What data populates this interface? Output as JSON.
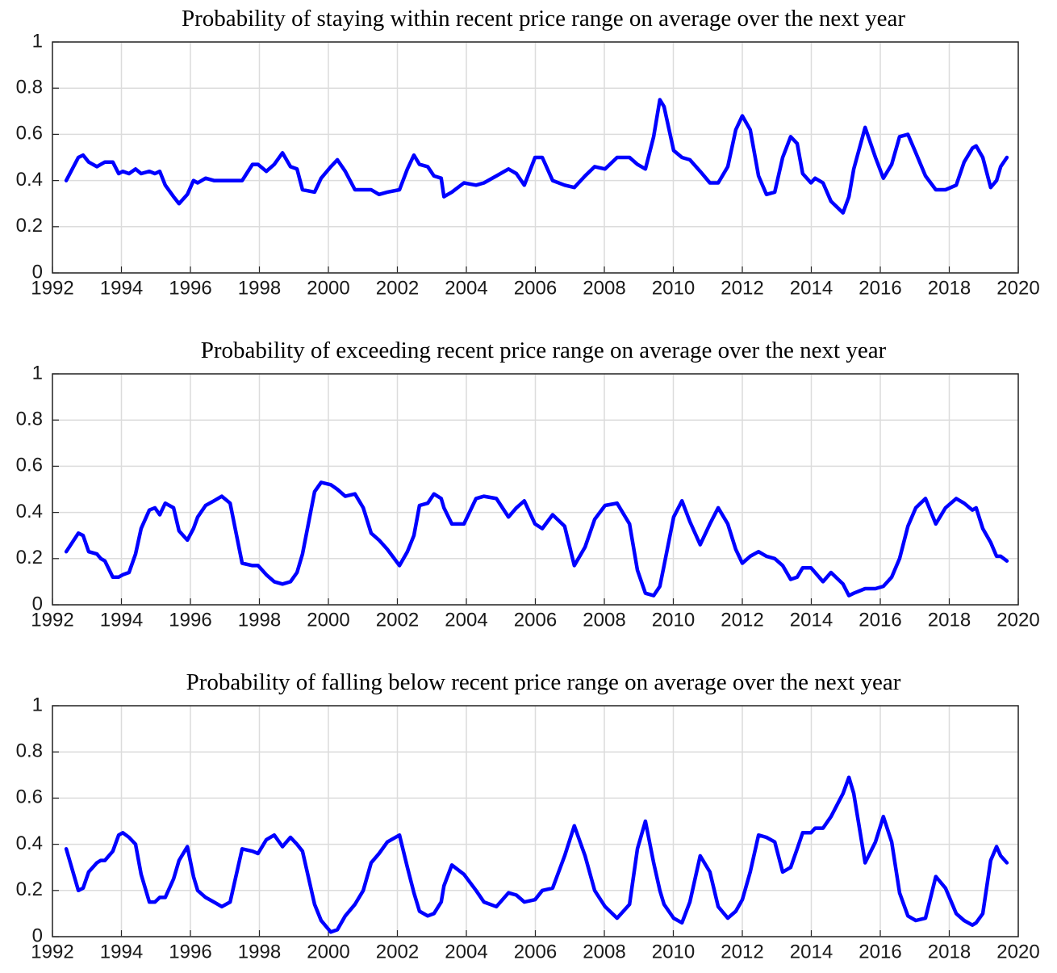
{
  "chart_data": [
    {
      "type": "line",
      "title": "Probability of staying within recent price range on average over the next year",
      "x": [
        1992.4,
        1992.75,
        1992.89,
        1993.05,
        1993.29,
        1993.4,
        1993.52,
        1993.75,
        1993.92,
        1994.04,
        1994.22,
        1994.41,
        1994.57,
        1994.81,
        1994.97,
        1995.11,
        1995.27,
        1995.51,
        1995.67,
        1995.91,
        1996.09,
        1996.21,
        1996.44,
        1996.68,
        1996.91,
        1997.15,
        1997.5,
        1997.8,
        1997.96,
        1998.2,
        1998.43,
        1998.67,
        1998.9,
        1999.09,
        1999.25,
        1999.6,
        1999.79,
        2000.07,
        2000.26,
        2000.49,
        2000.77,
        2001.01,
        2001.24,
        2001.47,
        2001.71,
        2002.06,
        2002.29,
        2002.48,
        2002.64,
        2002.88,
        2003.06,
        2003.27,
        2003.35,
        2003.58,
        2003.93,
        2004.28,
        2004.51,
        2004.87,
        2005.22,
        2005.45,
        2005.68,
        2005.99,
        2006.2,
        2006.5,
        2006.85,
        2007.13,
        2007.44,
        2007.72,
        2008.02,
        2008.37,
        2008.73,
        2008.96,
        2009.19,
        2009.43,
        2009.61,
        2009.73,
        2010.01,
        2010.25,
        2010.48,
        2010.78,
        2011.06,
        2011.3,
        2011.58,
        2011.81,
        2012.0,
        2012.23,
        2012.47,
        2012.7,
        2012.94,
        2013.17,
        2013.4,
        2013.59,
        2013.75,
        2013.99,
        2014.11,
        2014.34,
        2014.57,
        2014.92,
        2015.09,
        2015.23,
        2015.56,
        2015.86,
        2016.09,
        2016.33,
        2016.56,
        2016.8,
        2017.03,
        2017.31,
        2017.61,
        2017.89,
        2018.2,
        2018.43,
        2018.67,
        2018.78,
        2018.97,
        2019.2,
        2019.37,
        2019.49,
        2019.67
      ],
      "values": [
        0.4,
        0.5,
        0.51,
        0.48,
        0.46,
        0.47,
        0.48,
        0.48,
        0.43,
        0.44,
        0.43,
        0.45,
        0.43,
        0.44,
        0.43,
        0.44,
        0.38,
        0.33,
        0.3,
        0.34,
        0.4,
        0.39,
        0.41,
        0.4,
        0.4,
        0.4,
        0.4,
        0.47,
        0.47,
        0.44,
        0.47,
        0.52,
        0.46,
        0.45,
        0.36,
        0.35,
        0.41,
        0.46,
        0.49,
        0.44,
        0.36,
        0.36,
        0.36,
        0.34,
        0.35,
        0.36,
        0.45,
        0.51,
        0.47,
        0.46,
        0.42,
        0.41,
        0.33,
        0.35,
        0.39,
        0.38,
        0.39,
        0.42,
        0.45,
        0.43,
        0.38,
        0.5,
        0.5,
        0.4,
        0.38,
        0.37,
        0.42,
        0.46,
        0.45,
        0.5,
        0.5,
        0.47,
        0.45,
        0.59,
        0.75,
        0.72,
        0.53,
        0.5,
        0.49,
        0.44,
        0.39,
        0.39,
        0.46,
        0.62,
        0.68,
        0.62,
        0.42,
        0.34,
        0.35,
        0.5,
        0.59,
        0.56,
        0.43,
        0.39,
        0.41,
        0.39,
        0.31,
        0.26,
        0.33,
        0.45,
        0.63,
        0.5,
        0.41,
        0.47,
        0.59,
        0.6,
        0.52,
        0.42,
        0.36,
        0.36,
        0.38,
        0.48,
        0.54,
        0.55,
        0.5,
        0.37,
        0.4,
        0.46,
        0.5
      ],
      "color": "#0000ff",
      "xlim": [
        1992,
        2020
      ],
      "xticks": [
        1992,
        1994,
        1996,
        1998,
        2000,
        2002,
        2004,
        2006,
        2008,
        2010,
        2012,
        2014,
        2016,
        2018,
        2020
      ],
      "ylim": [
        0,
        1
      ],
      "yticks": [
        0,
        0.2,
        0.4,
        0.6,
        0.8,
        1
      ],
      "grid": true
    },
    {
      "type": "line",
      "title": "Probability of exceeding recent price range on average over the next year",
      "x": [
        1992.4,
        1992.75,
        1992.89,
        1993.05,
        1993.29,
        1993.4,
        1993.52,
        1993.75,
        1993.92,
        1994.04,
        1994.22,
        1994.41,
        1994.57,
        1994.81,
        1994.97,
        1995.11,
        1995.27,
        1995.51,
        1995.67,
        1995.91,
        1996.09,
        1996.21,
        1996.44,
        1996.68,
        1996.91,
        1997.15,
        1997.5,
        1997.8,
        1997.96,
        1998.2,
        1998.43,
        1998.67,
        1998.9,
        1999.09,
        1999.25,
        1999.6,
        1999.79,
        2000.07,
        2000.26,
        2000.49,
        2000.77,
        2001.01,
        2001.24,
        2001.47,
        2001.71,
        2002.06,
        2002.29,
        2002.48,
        2002.64,
        2002.88,
        2003.06,
        2003.27,
        2003.35,
        2003.58,
        2003.93,
        2004.28,
        2004.51,
        2004.87,
        2005.22,
        2005.45,
        2005.68,
        2005.99,
        2006.2,
        2006.5,
        2006.85,
        2007.13,
        2007.44,
        2007.72,
        2008.02,
        2008.37,
        2008.73,
        2008.96,
        2009.19,
        2009.43,
        2009.61,
        2009.73,
        2010.01,
        2010.25,
        2010.48,
        2010.78,
        2011.06,
        2011.3,
        2011.58,
        2011.81,
        2012.0,
        2012.23,
        2012.47,
        2012.7,
        2012.94,
        2013.17,
        2013.4,
        2013.59,
        2013.75,
        2013.99,
        2014.11,
        2014.34,
        2014.57,
        2014.92,
        2015.09,
        2015.23,
        2015.56,
        2015.86,
        2016.09,
        2016.33,
        2016.56,
        2016.8,
        2017.03,
        2017.31,
        2017.61,
        2017.89,
        2018.2,
        2018.43,
        2018.67,
        2018.78,
        2018.97,
        2019.2,
        2019.37,
        2019.49,
        2019.67
      ],
      "values": [
        0.23,
        0.31,
        0.3,
        0.23,
        0.22,
        0.2,
        0.19,
        0.12,
        0.12,
        0.13,
        0.14,
        0.22,
        0.33,
        0.41,
        0.42,
        0.39,
        0.44,
        0.42,
        0.32,
        0.28,
        0.33,
        0.38,
        0.43,
        0.45,
        0.47,
        0.44,
        0.18,
        0.17,
        0.17,
        0.13,
        0.1,
        0.09,
        0.1,
        0.14,
        0.22,
        0.49,
        0.53,
        0.52,
        0.5,
        0.47,
        0.48,
        0.42,
        0.31,
        0.28,
        0.24,
        0.17,
        0.23,
        0.3,
        0.43,
        0.44,
        0.48,
        0.46,
        0.42,
        0.35,
        0.35,
        0.46,
        0.47,
        0.46,
        0.38,
        0.42,
        0.45,
        0.35,
        0.33,
        0.39,
        0.34,
        0.17,
        0.25,
        0.37,
        0.43,
        0.44,
        0.35,
        0.15,
        0.05,
        0.04,
        0.08,
        0.17,
        0.38,
        0.45,
        0.36,
        0.26,
        0.35,
        0.42,
        0.35,
        0.24,
        0.18,
        0.21,
        0.23,
        0.21,
        0.2,
        0.17,
        0.11,
        0.12,
        0.16,
        0.16,
        0.14,
        0.1,
        0.14,
        0.09,
        0.04,
        0.05,
        0.07,
        0.07,
        0.08,
        0.12,
        0.2,
        0.34,
        0.42,
        0.46,
        0.35,
        0.42,
        0.46,
        0.44,
        0.41,
        0.42,
        0.33,
        0.27,
        0.21,
        0.21,
        0.19
      ],
      "color": "#0000ff",
      "xlim": [
        1992,
        2020
      ],
      "xticks": [
        1992,
        1994,
        1996,
        1998,
        2000,
        2002,
        2004,
        2006,
        2008,
        2010,
        2012,
        2014,
        2016,
        2018,
        2020
      ],
      "ylim": [
        0,
        1
      ],
      "yticks": [
        0,
        0.2,
        0.4,
        0.6,
        0.8,
        1
      ],
      "grid": true
    },
    {
      "type": "line",
      "title": "Probability of falling below recent price range on average over the next year",
      "x": [
        1992.4,
        1992.75,
        1992.89,
        1993.05,
        1993.29,
        1993.4,
        1993.52,
        1993.75,
        1993.92,
        1994.04,
        1994.22,
        1994.41,
        1994.57,
        1994.81,
        1994.97,
        1995.11,
        1995.27,
        1995.51,
        1995.67,
        1995.91,
        1996.09,
        1996.21,
        1996.44,
        1996.68,
        1996.91,
        1997.15,
        1997.5,
        1997.8,
        1997.96,
        1998.2,
        1998.43,
        1998.67,
        1998.9,
        1999.09,
        1999.25,
        1999.6,
        1999.79,
        2000.07,
        2000.26,
        2000.49,
        2000.77,
        2001.01,
        2001.24,
        2001.47,
        2001.71,
        2002.06,
        2002.29,
        2002.48,
        2002.64,
        2002.88,
        2003.06,
        2003.27,
        2003.35,
        2003.58,
        2003.93,
        2004.28,
        2004.51,
        2004.87,
        2005.22,
        2005.45,
        2005.68,
        2005.99,
        2006.2,
        2006.5,
        2006.85,
        2007.13,
        2007.44,
        2007.72,
        2008.02,
        2008.37,
        2008.73,
        2008.96,
        2009.19,
        2009.43,
        2009.61,
        2009.73,
        2010.01,
        2010.25,
        2010.48,
        2010.78,
        2011.06,
        2011.3,
        2011.58,
        2011.81,
        2012.0,
        2012.23,
        2012.47,
        2012.7,
        2012.94,
        2013.17,
        2013.4,
        2013.59,
        2013.75,
        2013.99,
        2014.11,
        2014.34,
        2014.57,
        2014.92,
        2015.09,
        2015.23,
        2015.56,
        2015.86,
        2016.09,
        2016.33,
        2016.56,
        2016.8,
        2017.03,
        2017.31,
        2017.61,
        2017.89,
        2018.2,
        2018.43,
        2018.67,
        2018.78,
        2018.97,
        2019.2,
        2019.37,
        2019.49,
        2019.67
      ],
      "values": [
        0.38,
        0.2,
        0.21,
        0.28,
        0.32,
        0.33,
        0.33,
        0.37,
        0.44,
        0.45,
        0.43,
        0.4,
        0.27,
        0.15,
        0.15,
        0.17,
        0.17,
        0.25,
        0.33,
        0.39,
        0.26,
        0.2,
        0.17,
        0.15,
        0.13,
        0.15,
        0.38,
        0.37,
        0.36,
        0.42,
        0.44,
        0.39,
        0.43,
        0.4,
        0.37,
        0.14,
        0.07,
        0.02,
        0.03,
        0.09,
        0.14,
        0.2,
        0.32,
        0.36,
        0.41,
        0.44,
        0.3,
        0.19,
        0.11,
        0.09,
        0.1,
        0.15,
        0.22,
        0.31,
        0.27,
        0.2,
        0.15,
        0.13,
        0.19,
        0.18,
        0.15,
        0.16,
        0.2,
        0.21,
        0.35,
        0.48,
        0.35,
        0.2,
        0.13,
        0.08,
        0.14,
        0.38,
        0.5,
        0.32,
        0.2,
        0.14,
        0.08,
        0.06,
        0.15,
        0.35,
        0.28,
        0.13,
        0.08,
        0.11,
        0.16,
        0.28,
        0.44,
        0.43,
        0.41,
        0.28,
        0.3,
        0.38,
        0.45,
        0.45,
        0.47,
        0.47,
        0.52,
        0.62,
        0.69,
        0.62,
        0.32,
        0.41,
        0.52,
        0.41,
        0.19,
        0.09,
        0.07,
        0.08,
        0.26,
        0.21,
        0.1,
        0.07,
        0.05,
        0.06,
        0.1,
        0.33,
        0.39,
        0.35,
        0.32
      ],
      "color": "#0000ff",
      "xlim": [
        1992,
        2020
      ],
      "xticks": [
        1992,
        1994,
        1996,
        1998,
        2000,
        2002,
        2004,
        2006,
        2008,
        2010,
        2012,
        2014,
        2016,
        2018,
        2020
      ],
      "ylim": [
        0,
        1
      ],
      "yticks": [
        0,
        0.2,
        0.4,
        0.6,
        0.8,
        1
      ],
      "grid": true
    }
  ]
}
